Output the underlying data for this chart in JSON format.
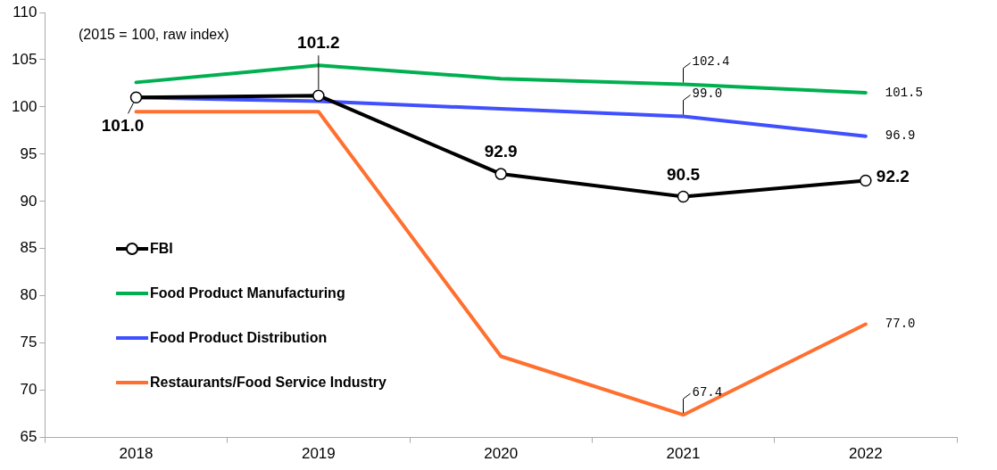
{
  "chart_data": {
    "type": "line",
    "categories": [
      "2018",
      "2019",
      "2020",
      "2021",
      "2022"
    ],
    "ylim": [
      65,
      110
    ],
    "yticks": [
      65,
      70,
      75,
      80,
      85,
      90,
      95,
      100,
      105,
      110
    ],
    "grid": false,
    "legend": "left",
    "marker": "none",
    "line_style": "solid",
    "annotations": [
      "(2015 = 100, raw index)"
    ],
    "series": [
      {
        "name": "FBI",
        "color": "#000000",
        "marker": "circle",
        "values": [
          101.0,
          101.2,
          92.9,
          90.5,
          92.2
        ],
        "value_labels": [
          "101.0",
          "101.2",
          "92.9",
          "90.5",
          "92.2"
        ]
      },
      {
        "name": "Food Product Manufacturing",
        "color": "#00b050",
        "values": [
          102.6,
          104.4,
          103.0,
          102.4,
          101.5
        ],
        "value_labels": [
          null,
          null,
          null,
          "102.4",
          "101.5"
        ]
      },
      {
        "name": "Food Product Distribution",
        "color": "#4050ff",
        "values": [
          101.0,
          100.6,
          99.8,
          99.0,
          96.9
        ],
        "value_labels": [
          null,
          null,
          null,
          "99.0",
          "96.9"
        ]
      },
      {
        "name": "Restaurants/Food Service Industry",
        "color": "#ff7030",
        "values": [
          99.5,
          99.5,
          73.6,
          67.4,
          77.0
        ],
        "value_labels": [
          null,
          null,
          null,
          "67.4",
          "77.0"
        ]
      }
    ]
  }
}
